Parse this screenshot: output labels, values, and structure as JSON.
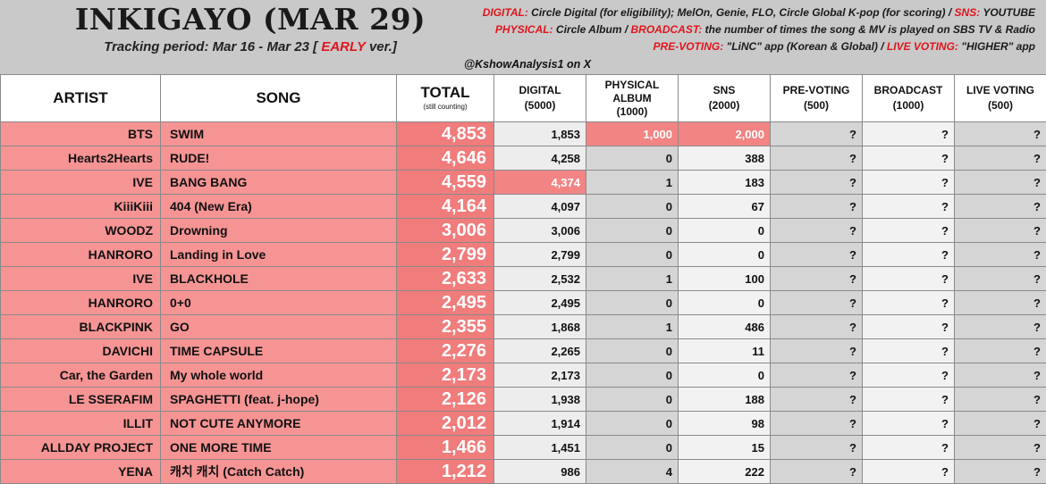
{
  "header": {
    "title": "INKIGAYO (MAR 29)",
    "tracking_prefix": "Tracking period: Mar 16 - Mar 23 [",
    "tracking_early": "EARLY",
    "tracking_suffix": "ver.]",
    "handle": "@KshowAnalysis1 on X",
    "info_line1": {
      "k1": "DIGITAL:",
      "v1": " Circle Digital (for eligibility); MelOn, Genie, FLO, Circle Global K-pop (for scoring) / ",
      "k2": "SNS:",
      "v2": " YOUTUBE"
    },
    "info_line2": {
      "k1": "PHYSICAL:",
      "v1": " Circle Album / ",
      "k2": "BROADCAST:",
      "v2": " the number of times the song & MV is played on SBS TV & Radio"
    },
    "info_line3": {
      "k1": "PRE-VOTING:",
      "v1": " \"LiNC\" app (Korean & Global) / ",
      "k2": "LIVE VOTING:",
      "v2": " \"HIGHER\" app"
    }
  },
  "columns": {
    "artist": "ARTIST",
    "song": "SONG",
    "total": "TOTAL",
    "total_sub": "(still counting)",
    "digital": "DIGITAL",
    "digital_sub": "(5000)",
    "physical1": "PHYSICAL",
    "physical2": "ALBUM",
    "physical_sub": "(1000)",
    "sns": "SNS",
    "sns_sub": "(2000)",
    "prevoting": "PRE-VOTING",
    "prevoting_sub": "(500)",
    "broadcast": "BROADCAST",
    "broadcast_sub": "(1000)",
    "livevoting": "LIVE VOTING",
    "livevoting_sub": "(500)"
  },
  "colors": {
    "highlight": "#f28484",
    "artist_song_bg": "#f69494",
    "total_bg": "#f07c7c",
    "header_bg": "#c9c9c9",
    "accent_red": "#e0151b"
  },
  "rows": [
    {
      "artist": "BTS",
      "song": "SWIM",
      "total": "4,853",
      "digital": "1,853",
      "physical": "1,000",
      "sns": "2,000",
      "prevoting": "?",
      "broadcast": "?",
      "livevoting": "?"
    },
    {
      "artist": "Hearts2Hearts",
      "song": "RUDE!",
      "total": "4,646",
      "digital": "4,258",
      "physical": "0",
      "sns": "388",
      "prevoting": "?",
      "broadcast": "?",
      "livevoting": "?"
    },
    {
      "artist": "IVE",
      "song": "BANG BANG",
      "total": "4,559",
      "digital": "4,374",
      "physical": "1",
      "sns": "183",
      "prevoting": "?",
      "broadcast": "?",
      "livevoting": "?"
    },
    {
      "artist": "KiiiKiii",
      "song": "404 (New Era)",
      "total": "4,164",
      "digital": "4,097",
      "physical": "0",
      "sns": "67",
      "prevoting": "?",
      "broadcast": "?",
      "livevoting": "?"
    },
    {
      "artist": "WOODZ",
      "song": "Drowning",
      "total": "3,006",
      "digital": "3,006",
      "physical": "0",
      "sns": "0",
      "prevoting": "?",
      "broadcast": "?",
      "livevoting": "?"
    },
    {
      "artist": "HANRORO",
      "song": "Landing in Love",
      "total": "2,799",
      "digital": "2,799",
      "physical": "0",
      "sns": "0",
      "prevoting": "?",
      "broadcast": "?",
      "livevoting": "?"
    },
    {
      "artist": "IVE",
      "song": "BLACKHOLE",
      "total": "2,633",
      "digital": "2,532",
      "physical": "1",
      "sns": "100",
      "prevoting": "?",
      "broadcast": "?",
      "livevoting": "?"
    },
    {
      "artist": "HANRORO",
      "song": "0+0",
      "total": "2,495",
      "digital": "2,495",
      "physical": "0",
      "sns": "0",
      "prevoting": "?",
      "broadcast": "?",
      "livevoting": "?"
    },
    {
      "artist": "BLACKPINK",
      "song": "GO",
      "total": "2,355",
      "digital": "1,868",
      "physical": "1",
      "sns": "486",
      "prevoting": "?",
      "broadcast": "?",
      "livevoting": "?"
    },
    {
      "artist": "DAVICHI",
      "song": "TIME CAPSULE",
      "total": "2,276",
      "digital": "2,265",
      "physical": "0",
      "sns": "11",
      "prevoting": "?",
      "broadcast": "?",
      "livevoting": "?"
    },
    {
      "artist": "Car, the Garden",
      "song": "My whole world",
      "total": "2,173",
      "digital": "2,173",
      "physical": "0",
      "sns": "0",
      "prevoting": "?",
      "broadcast": "?",
      "livevoting": "?"
    },
    {
      "artist": "LE SSERAFIM",
      "song": "SPAGHETTI (feat. j-hope)",
      "total": "2,126",
      "digital": "1,938",
      "physical": "0",
      "sns": "188",
      "prevoting": "?",
      "broadcast": "?",
      "livevoting": "?"
    },
    {
      "artist": "ILLIT",
      "song": "NOT CUTE ANYMORE",
      "total": "2,012",
      "digital": "1,914",
      "physical": "0",
      "sns": "98",
      "prevoting": "?",
      "broadcast": "?",
      "livevoting": "?"
    },
    {
      "artist": "ALLDAY PROJECT",
      "song": "ONE MORE TIME",
      "total": "1,466",
      "digital": "1,451",
      "physical": "0",
      "sns": "15",
      "prevoting": "?",
      "broadcast": "?",
      "livevoting": "?"
    },
    {
      "artist": "YENA",
      "song": "캐치 캐치 (Catch Catch)",
      "total": "1,212",
      "digital": "986",
      "physical": "4",
      "sns": "222",
      "prevoting": "?",
      "broadcast": "?",
      "livevoting": "?"
    }
  ]
}
